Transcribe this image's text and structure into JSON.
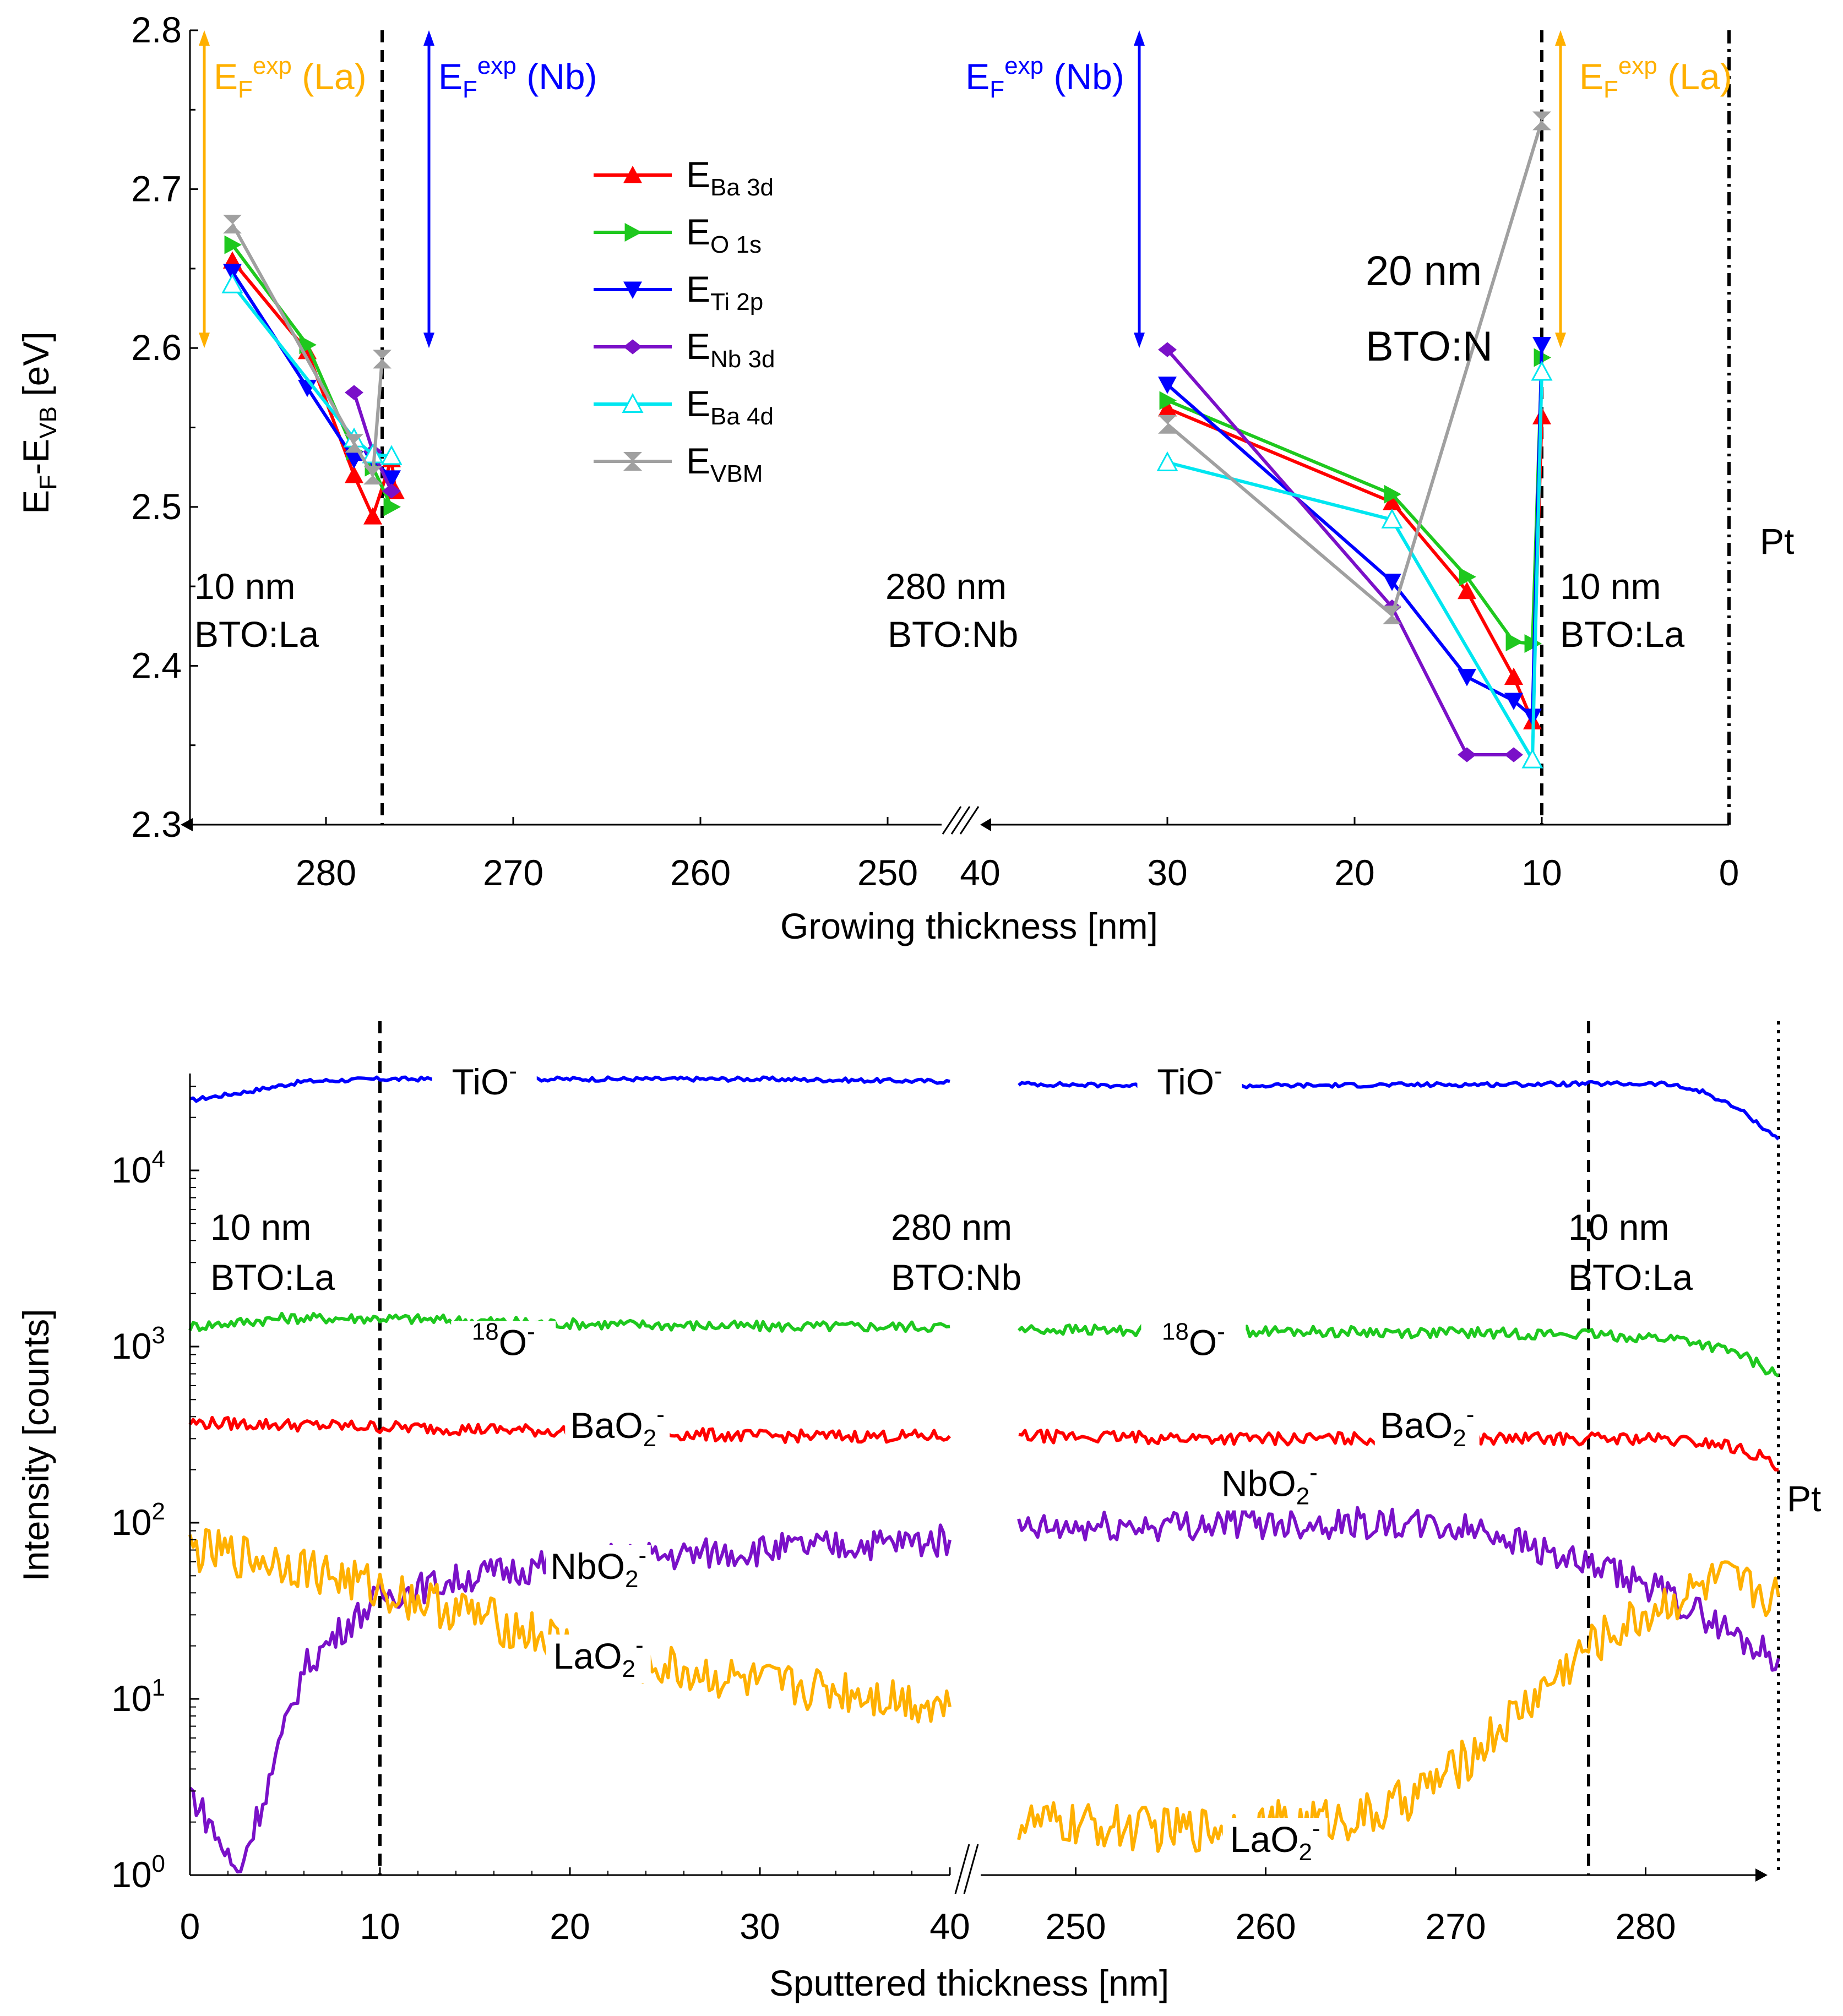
{
  "colors": {
    "red": "#ff0000",
    "green": "#1ec81e",
    "blue": "#0000ff",
    "purple": "#7a10c8",
    "cyan": "#00e6f0",
    "gray": "#a0a0a0",
    "orange": "#ffb000",
    "axis": "#000000"
  },
  "chart_data": [
    {
      "type": "line",
      "panel": "top",
      "xlabel": "Growing thickness [nm]",
      "ylabel_parts": {
        "main": "E",
        "sub1": "F",
        "dash": "-E",
        "sub2": "VB",
        "unit": " [eV]"
      },
      "ylim": [
        2.3,
        2.8
      ],
      "yticks": [
        "2.3",
        "2.4",
        "2.5",
        "2.6",
        "2.7",
        "2.8"
      ],
      "x_break": {
        "left_range": [
          287,
          245
        ],
        "right_range": [
          40,
          0
        ]
      },
      "xticks_left": [
        "280",
        "270",
        "260",
        "250"
      ],
      "xticks_right": [
        "40",
        "30",
        "20",
        "10",
        "0"
      ],
      "series": [
        {
          "name": "Ba 3d",
          "color": "red",
          "marker": "triangle-up",
          "left": [
            [
              285,
              2.655
            ],
            [
              281,
              2.598
            ],
            [
              278.5,
              2.52
            ],
            [
              277.5,
              2.494
            ],
            [
              276.5,
              2.53
            ],
            [
              276.3,
              2.51
            ]
          ],
          "right": [
            [
              30,
              2.562
            ],
            [
              18,
              2.503
            ],
            [
              14,
              2.447
            ],
            [
              11.5,
              2.393
            ],
            [
              10.5,
              2.365
            ],
            [
              10,
              2.557
            ]
          ]
        },
        {
          "name": "O 1s",
          "color": "green",
          "marker": "triangle-right",
          "left": [
            [
              285,
              2.665
            ],
            [
              281,
              2.602
            ],
            [
              278.5,
              2.535
            ],
            [
              277.5,
              2.525
            ],
            [
              276.5,
              2.5
            ]
          ],
          "right": [
            [
              30,
              2.567
            ],
            [
              18,
              2.508
            ],
            [
              14,
              2.456
            ],
            [
              11.5,
              2.415
            ],
            [
              10.5,
              2.414
            ],
            [
              10,
              2.594
            ]
          ]
        },
        {
          "name": "Ti 2p",
          "color": "blue",
          "marker": "triangle-down",
          "left": [
            [
              285,
              2.648
            ],
            [
              281,
              2.575
            ],
            [
              278.5,
              2.53
            ],
            [
              277.5,
              2.53
            ],
            [
              276.5,
              2.518
            ]
          ],
          "right": [
            [
              30,
              2.577
            ],
            [
              18,
              2.453
            ],
            [
              14,
              2.393
            ],
            [
              11.5,
              2.378
            ],
            [
              10.5,
              2.368
            ],
            [
              10,
              2.602
            ]
          ]
        },
        {
          "name": "Nb 3d",
          "color": "purple",
          "marker": "diamond",
          "left": [
            [
              278.5,
              2.572
            ],
            [
              277.5,
              2.535
            ],
            [
              276.5,
              2.51
            ]
          ],
          "right": [
            [
              30,
              2.599
            ],
            [
              18,
              2.437
            ],
            [
              14,
              2.344
            ],
            [
              11.5,
              2.344
            ]
          ]
        },
        {
          "name": "Ba 4d",
          "color": "cyan",
          "marker": "triangle-up-open",
          "left": [
            [
              285,
              2.64
            ],
            [
              278.5,
              2.543
            ],
            [
              277.5,
              2.533
            ],
            [
              276.5,
              2.532
            ]
          ],
          "right": [
            [
              30,
              2.528
            ],
            [
              18,
              2.492
            ],
            [
              10.5,
              2.341
            ],
            [
              10,
              2.585
            ]
          ]
        },
        {
          "name": "VBM",
          "color": "gray",
          "marker": "bowtie",
          "left": [
            [
              285,
              2.678
            ],
            [
              278.5,
              2.54
            ],
            [
              277.5,
              2.52
            ],
            [
              277,
              2.593
            ]
          ],
          "right": [
            [
              30,
              2.552
            ],
            [
              18,
              2.432
            ],
            [
              10,
              2.743
            ]
          ]
        }
      ],
      "legend": [
        {
          "label": "E",
          "sub": "Ba 3d",
          "color": "red",
          "marker": "triangle-up"
        },
        {
          "label": "E",
          "sub": "O 1s",
          "color": "green",
          "marker": "triangle-right"
        },
        {
          "label": "E",
          "sub": "Ti 2p",
          "color": "blue",
          "marker": "triangle-down"
        },
        {
          "label": "E",
          "sub": "Nb 3d",
          "color": "purple",
          "marker": "diamond"
        },
        {
          "label": "E",
          "sub": "Ba 4d",
          "color": "cyan",
          "marker": "triangle-up-open"
        },
        {
          "label": "E",
          "sub": "VBM",
          "color": "gray",
          "marker": "bowtie"
        }
      ],
      "vlines": [
        {
          "side": "left",
          "x": 277,
          "style": "dashed"
        },
        {
          "side": "right",
          "x": 10,
          "style": "dashed"
        },
        {
          "side": "right",
          "x": 0,
          "style": "dashdot"
        }
      ],
      "arrows": [
        {
          "side": "left",
          "x": 286.5,
          "y_range": [
            2.6,
            2.8
          ],
          "color": "orange"
        },
        {
          "side": "left",
          "x": 274.5,
          "y_range": [
            2.6,
            2.8
          ],
          "color": "blue"
        },
        {
          "side": "right",
          "x": 31.5,
          "y_range": [
            2.6,
            2.8
          ],
          "color": "blue"
        },
        {
          "side": "right",
          "x": 9,
          "y_range": [
            2.6,
            2.8
          ],
          "color": "orange"
        }
      ],
      "arrow_labels": [
        {
          "text": "E",
          "sub": "F",
          "sup": "exp",
          "tail": " (La)",
          "color": "orange",
          "side": "left",
          "x": 286,
          "anchor": "start"
        },
        {
          "text": "E",
          "sub": "F",
          "sup": "exp",
          "tail": " (Nb)",
          "color": "blue",
          "side": "left",
          "x": 274,
          "anchor": "start"
        },
        {
          "text": "E",
          "sub": "F",
          "sup": "exp",
          "tail": " (Nb)",
          "color": "blue",
          "side": "right",
          "x": 32.3,
          "anchor": "end"
        },
        {
          "text": "E",
          "sub": "F",
          "sup": "exp",
          "tail": " (La)",
          "color": "orange",
          "side": "right",
          "x": 8,
          "anchor": "start"
        }
      ],
      "annotations": {
        "left_layer": [
          "10 nm",
          "BTO:La"
        ],
        "middle_layer": [
          "280 nm",
          "BTO:Nb"
        ],
        "right_layer": [
          "10 nm",
          "BTO:La"
        ],
        "film": [
          "20 nm",
          "BTO:N"
        ],
        "electrode": "Pt"
      }
    },
    {
      "type": "line",
      "panel": "bottom",
      "xlabel": "Sputtered thickness [nm]",
      "ylabel": "Intensity [counts]",
      "yscale": "log",
      "ylim_log10": [
        0,
        4.55
      ],
      "yticks_exp": [
        "0",
        "1",
        "2",
        "3",
        "4"
      ],
      "x_break": {
        "left_range": [
          0,
          40
        ],
        "right_range": [
          245,
          287
        ]
      },
      "xticks_left": [
        "0",
        "10",
        "20",
        "30",
        "40"
      ],
      "xticks_right": [
        "250",
        "260",
        "270",
        "280"
      ],
      "series": [
        {
          "name": "TiO-",
          "color": "blue",
          "left": [
            [
              0,
              25000
            ],
            [
              3,
              28000
            ],
            [
              6,
              32000
            ],
            [
              10,
              33000
            ],
            [
              20,
              33000
            ],
            [
              30,
              33000
            ],
            [
              40,
              32000
            ]
          ],
          "right": [
            [
              247,
              31000
            ],
            [
              255,
              30000
            ],
            [
              265,
              30500
            ],
            [
              277,
              31000
            ],
            [
              281,
              31000
            ],
            [
              283,
              28000
            ],
            [
              285,
              22000
            ],
            [
              287,
              15000
            ]
          ]
        },
        {
          "name": "18O-",
          "color": "green",
          "left": [
            [
              0,
              1300
            ],
            [
              5,
              1450
            ],
            [
              10,
              1450
            ],
            [
              20,
              1350
            ],
            [
              30,
              1300
            ],
            [
              40,
              1300
            ]
          ],
          "right": [
            [
              247,
              1250
            ],
            [
              260,
              1220
            ],
            [
              270,
              1200
            ],
            [
              277,
              1170
            ],
            [
              282,
              1100
            ],
            [
              285,
              900
            ],
            [
              287,
              680
            ]
          ]
        },
        {
          "name": "BaO2-",
          "color": "red",
          "left": [
            [
              0,
              370
            ],
            [
              10,
              350
            ],
            [
              20,
              330
            ],
            [
              30,
              310
            ],
            [
              40,
              310
            ]
          ],
          "right": [
            [
              247,
              310
            ],
            [
              260,
              300
            ],
            [
              270,
              300
            ],
            [
              280,
              300
            ],
            [
              284,
              280
            ],
            [
              286,
              240
            ],
            [
              287,
              200
            ]
          ]
        },
        {
          "name": "NbO2-",
          "color": "purple",
          "left": [
            [
              0,
              3
            ],
            [
              1,
              2
            ],
            [
              2.5,
              1
            ],
            [
              4,
              3
            ],
            [
              6,
              15
            ],
            [
              8,
              25
            ],
            [
              10,
              38
            ],
            [
              15,
              50
            ],
            [
              20,
              60
            ],
            [
              30,
              70
            ],
            [
              40,
              80
            ]
          ],
          "right": [
            [
              247,
              90
            ],
            [
              258,
              100
            ],
            [
              265,
              100
            ],
            [
              272,
              90
            ],
            [
              276,
              60
            ],
            [
              280,
              45
            ],
            [
              283,
              30
            ],
            [
              285,
              22
            ],
            [
              287,
              17
            ]
          ]
        },
        {
          "name": "LaO2-",
          "color": "orange",
          "left": [
            [
              0,
              70
            ],
            [
              5,
              60
            ],
            [
              10,
              42
            ],
            [
              15,
              30
            ],
            [
              20,
              20
            ],
            [
              25,
              15
            ],
            [
              30,
              12
            ],
            [
              35,
              11
            ],
            [
              40,
              9
            ]
          ],
          "right": [
            [
              247,
              2
            ],
            [
              255,
              1.8
            ],
            [
              262,
              2
            ],
            [
              266,
              2.2
            ],
            [
              270,
              4
            ],
            [
              274,
              10
            ],
            [
              277,
              20
            ],
            [
              281,
              35
            ],
            [
              284,
              48
            ],
            [
              287,
              38
            ]
          ]
        }
      ],
      "series_labels": [
        {
          "name": "TiO",
          "sup": "-",
          "sub": "",
          "side": "left",
          "x": 15.5,
          "log10": 4.5
        },
        {
          "name": "TiO",
          "sup": "-",
          "sub": "",
          "side": "right",
          "x": 256,
          "log10": 4.5
        },
        {
          "name": "O",
          "pre_sup": "18",
          "sup": "-",
          "sub": "",
          "side": "left",
          "x": 16.5,
          "log10": 3.02
        },
        {
          "name": "O",
          "pre_sup": "18",
          "sup": "-",
          "sub": "",
          "side": "right",
          "x": 256.2,
          "log10": 3.02
        },
        {
          "name": "BaO",
          "sup": "-",
          "sub": "2",
          "side": "left",
          "x": 22.5,
          "log10": 2.55
        },
        {
          "name": "BaO",
          "sup": "-",
          "sub": "2",
          "side": "right",
          "x": 268.5,
          "log10": 2.55
        },
        {
          "name": "NbO",
          "sup": "-",
          "sub": "2",
          "side": "left",
          "x": 21.5,
          "log10": 1.75
        },
        {
          "name": "NbO",
          "sup": "-",
          "sub": "2",
          "side": "right",
          "x": 260.2,
          "log10": 2.22
        },
        {
          "name": "LaO",
          "sup": "-",
          "sub": "2",
          "side": "left",
          "x": 21.5,
          "log10": 1.24
        },
        {
          "name": "LaO",
          "sup": "-",
          "sub": "2",
          "side": "right",
          "x": 260.5,
          "log10": 0.2
        }
      ],
      "vlines": [
        {
          "side": "left",
          "x": 10,
          "style": "dashed"
        },
        {
          "side": "right",
          "x": 277,
          "style": "dashed"
        },
        {
          "side": "right",
          "x": 287,
          "style": "dotted"
        }
      ],
      "annotations": {
        "left_layer": [
          "10 nm",
          "BTO:La"
        ],
        "middle_layer": [
          "280 nm",
          "BTO:Nb"
        ],
        "right_layer": [
          "10 nm",
          "BTO:La"
        ],
        "electrode": "Pt"
      }
    }
  ]
}
